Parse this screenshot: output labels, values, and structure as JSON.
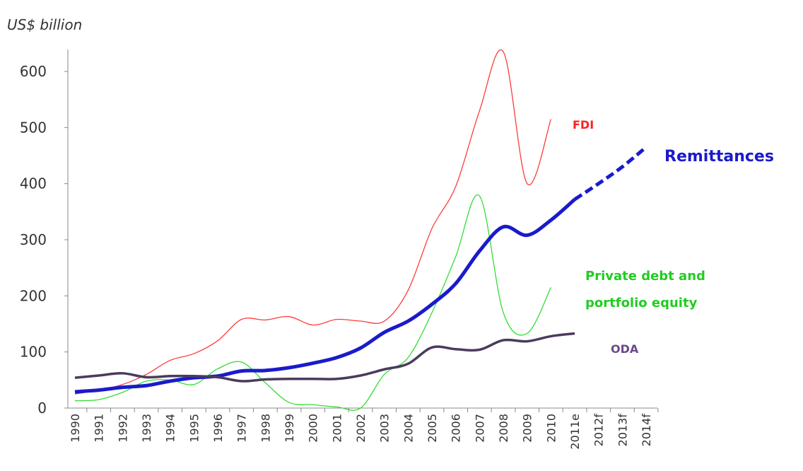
{
  "chart_data": {
    "type": "line",
    "y_axis_label": "US$ billion",
    "categories": [
      "1990",
      "1991",
      "1992",
      "1993",
      "1994",
      "1995",
      "1996",
      "1997",
      "1998",
      "1999",
      "2000",
      "2001",
      "2002",
      "2003",
      "2004",
      "2005",
      "2006",
      "2007",
      "2008",
      "2009",
      "2010",
      "2011e",
      "2012f",
      "2013f",
      "2014f"
    ],
    "ylim": [
      0,
      640
    ],
    "yticks": [
      0,
      100,
      200,
      300,
      400,
      500,
      600
    ],
    "series": [
      {
        "name": "FDI",
        "color": "#ff3b3b",
        "width": 1.3,
        "values": [
          25,
          32,
          42,
          60,
          85,
          97,
          120,
          158,
          157,
          163,
          148,
          158,
          155,
          155,
          210,
          320,
          395,
          530,
          635,
          400,
          515,
          null,
          null,
          null,
          null
        ]
      },
      {
        "name": "Private debt and portfolio equity",
        "color": "#33dd33",
        "width": 1.3,
        "values": [
          13,
          15,
          28,
          48,
          50,
          42,
          70,
          82,
          45,
          10,
          6,
          2,
          0,
          60,
          90,
          170,
          270,
          378,
          170,
          133,
          215,
          null,
          null,
          null,
          null
        ]
      },
      {
        "name": "Remittances",
        "color": "#1a1acc",
        "width": 5,
        "dashed_from_category": "2011e",
        "values": [
          29,
          32,
          37,
          40,
          48,
          54,
          57,
          66,
          67,
          72,
          80,
          90,
          107,
          135,
          155,
          185,
          222,
          280,
          323,
          308,
          335,
          372,
          400,
          430,
          465
        ]
      },
      {
        "name": "ODA",
        "color": "#4a3b5c",
        "width": 3.5,
        "values": [
          54,
          58,
          62,
          55,
          57,
          57,
          55,
          48,
          51,
          52,
          52,
          52,
          58,
          69,
          79,
          108,
          105,
          104,
          121,
          119,
          128,
          133,
          null,
          null,
          null
        ]
      }
    ]
  }
}
